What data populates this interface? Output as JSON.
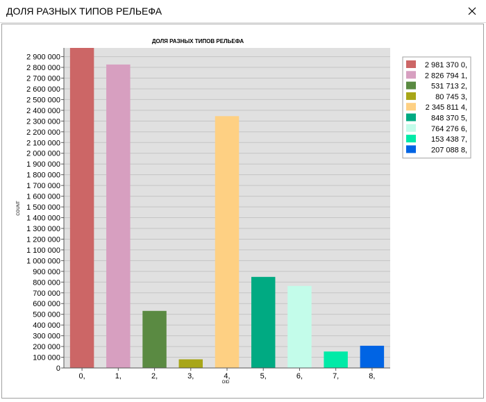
{
  "window": {
    "title": "ДОЛЯ РАЗНЫХ ТИПОВ РЕЛЬЕФА",
    "close_icon": "close-icon"
  },
  "chart_data": {
    "type": "bar",
    "title": "ДОЛЯ РАЗНЫХ ТИПОВ РЕЛЬЕФА",
    "xlabel": "OID",
    "ylabel": "COUNT",
    "categories": [
      "0,",
      "1,",
      "2,",
      "3,",
      "4,",
      "5,",
      "6,",
      "7,",
      "8,"
    ],
    "values": [
      2981370,
      2826794,
      531713,
      80745,
      2345811,
      848370,
      764276,
      153438,
      207088
    ],
    "colors": [
      "#cc6666",
      "#d79fc0",
      "#5a8a42",
      "#a8a618",
      "#fed083",
      "#00aa82",
      "#c3fcea",
      "#00eaa7",
      "#0064e4"
    ],
    "ylim": [
      0,
      2981370
    ],
    "yticks": [
      0,
      100000,
      200000,
      300000,
      400000,
      500000,
      600000,
      700000,
      800000,
      900000,
      1000000,
      1100000,
      1200000,
      1300000,
      1400000,
      1500000,
      1600000,
      1700000,
      1800000,
      1900000,
      2000000,
      2100000,
      2200000,
      2300000,
      2400000,
      2500000,
      2600000,
      2700000,
      2800000,
      2900000
    ],
    "ytick_labels": [
      "0",
      "100 000",
      "200 000",
      "300 000",
      "400 000",
      "500 000",
      "600 000",
      "700 000",
      "800 000",
      "900 000",
      "1 000 000",
      "1 100 000",
      "1 200 000",
      "1 300 000",
      "1 400 000",
      "1 500 000",
      "1 600 000",
      "1 700 000",
      "1 800 000",
      "1 900 000",
      "2 000 000",
      "2 100 000",
      "2 200 000",
      "2 300 000",
      "2 400 000",
      "2 500 000",
      "2 600 000",
      "2 700 000",
      "2 800 000",
      "2 900 000"
    ],
    "legend": {
      "position": "top-right",
      "entries": [
        "2 981 370 0,",
        "2 826 794 1,",
        "531 713 2,",
        "80 745 3,",
        "2 345 811 4,",
        "848 370 5,",
        "764 276 6,",
        "153 438 7,",
        "207 088 8,"
      ]
    },
    "grid": true,
    "plot_background": "#e0e0e0"
  }
}
